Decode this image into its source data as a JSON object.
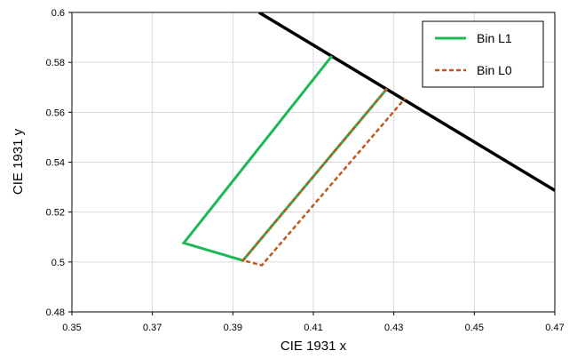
{
  "chart_data": {
    "type": "line",
    "title": "",
    "xlabel": "CIE 1931 x",
    "ylabel": "CIE 1931 y",
    "xlim": [
      0.35,
      0.47
    ],
    "ylim": [
      0.48,
      0.6
    ],
    "x_ticks": [
      "0.35",
      "0.37",
      "0.39",
      "0.41",
      "0.43",
      "0.45",
      "0.47"
    ],
    "y_ticks": [
      "0.48",
      "0.5",
      "0.52",
      "0.54",
      "0.56",
      "0.58",
      "0.6"
    ],
    "grid": true,
    "legend_position": "top-right",
    "boundary_line": {
      "color": "#000000",
      "points": [
        [
          0.3965,
          0.6
        ],
        [
          0.47,
          0.5287
        ]
      ]
    },
    "series": [
      {
        "name": "Bin L1",
        "color": "#1db954",
        "style": "solid",
        "points": [
          [
            0.4146,
            0.5826
          ],
          [
            0.3778,
            0.5076
          ],
          [
            0.3925,
            0.5006
          ],
          [
            0.4283,
            0.5695
          ]
        ]
      },
      {
        "name": "Bin L0",
        "color": "#c0581f",
        "style": "dashed",
        "points": [
          [
            0.4283,
            0.5695
          ],
          [
            0.3925,
            0.5006
          ],
          [
            0.3972,
            0.4987
          ],
          [
            0.4328,
            0.5656
          ]
        ]
      }
    ]
  }
}
